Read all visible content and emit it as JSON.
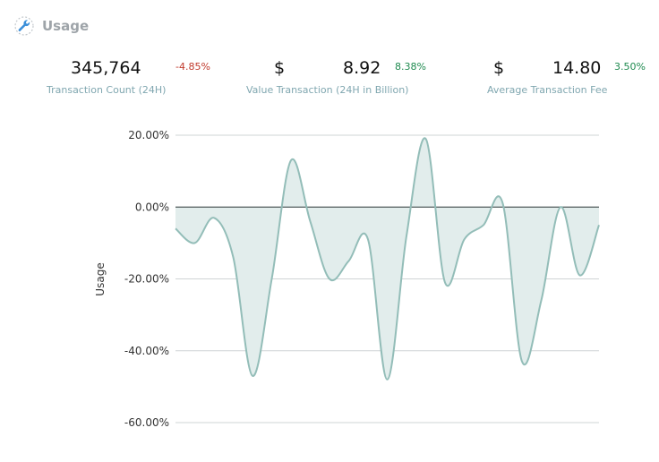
{
  "panel": {
    "title": "Usage",
    "icon": "wrench-icon"
  },
  "stats": [
    {
      "value": "345,764",
      "change": "-4.85%",
      "label": "Transaction Count (24H)",
      "currency": ""
    },
    {
      "value": "8.92",
      "change": "8.38%",
      "label": "Value Transaction (24H in Billion)",
      "currency": "$"
    },
    {
      "value": "14.80",
      "change": "3.50%",
      "label": "Average Transaction Fee",
      "currency": "$"
    }
  ],
  "colors": {
    "negative": "#c0392b",
    "positive": "#1e8a4f",
    "line": "#93bdb8",
    "fill": "#e2edec",
    "label": "#80a7b0"
  },
  "chart_data": {
    "type": "area",
    "ylabel": "Usage",
    "yticks": [
      "20.00%",
      "0.00%",
      "-20.00%",
      "-40.00%",
      "-60.00%"
    ],
    "ylim": [
      -60,
      20
    ],
    "grid": true,
    "y": [
      -6,
      -10,
      -3,
      -14,
      -47,
      -20,
      13,
      -4,
      -20,
      -15,
      -9,
      -48,
      -8,
      19,
      -21,
      -9,
      -5,
      1,
      -43,
      -26,
      0,
      -19,
      -5
    ]
  }
}
